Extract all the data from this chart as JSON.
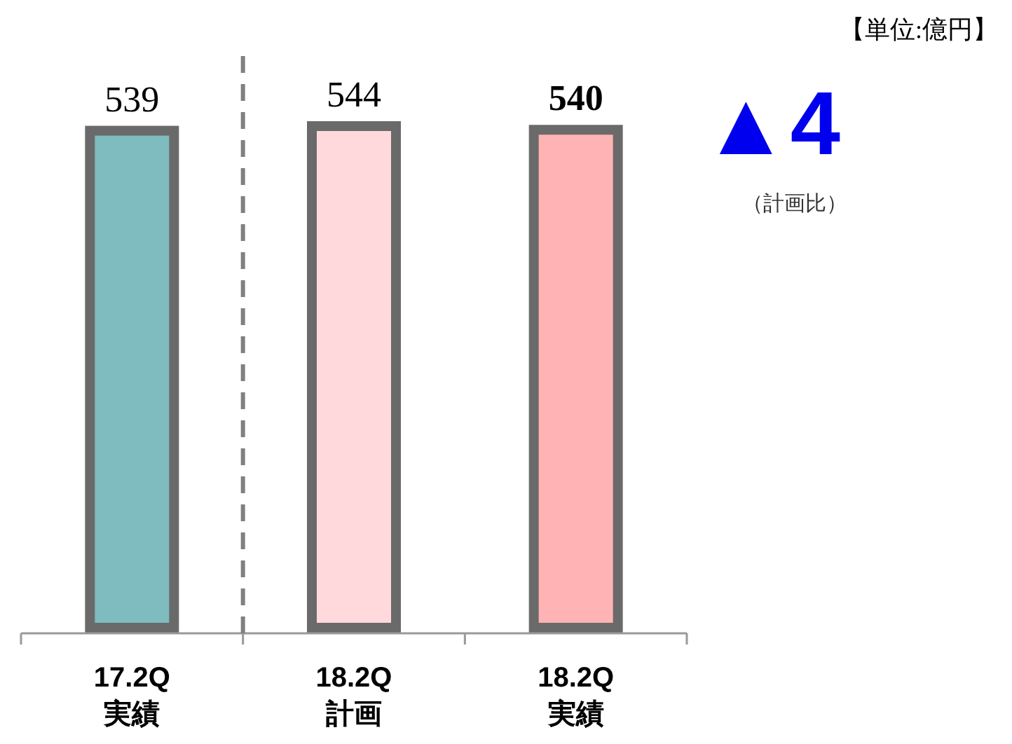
{
  "chart_data": {
    "type": "bar",
    "categories": [
      "17.2Q\n実績",
      "18.2Q\n計画",
      "18.2Q\n実績"
    ],
    "values": [
      539,
      544,
      540
    ],
    "colors": [
      "#7fbcc0",
      "#ffd9dc",
      "#ffb3b5"
    ],
    "data_labels": true,
    "annotations": [
      "【単位:億円】",
      "▲4",
      "（計画比）"
    ]
  }
}
